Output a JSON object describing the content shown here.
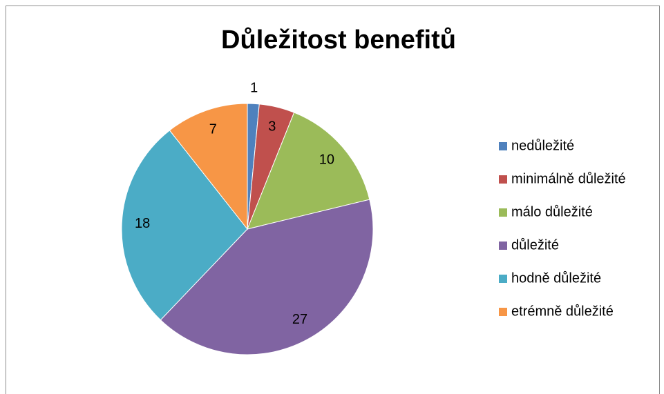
{
  "chart_data": {
    "type": "pie",
    "title": "Důležitost benefitů",
    "categories": [
      "nedůležité",
      "minimálně důležité",
      "málo důležité",
      "důležité",
      "hodně důležité",
      "etrémně důležité"
    ],
    "values": [
      1,
      3,
      10,
      27,
      18,
      7
    ],
    "colors": [
      "#4f81bd",
      "#c0504d",
      "#9bbb59",
      "#8064a2",
      "#4bacc6",
      "#f79646"
    ],
    "legend": "right"
  }
}
